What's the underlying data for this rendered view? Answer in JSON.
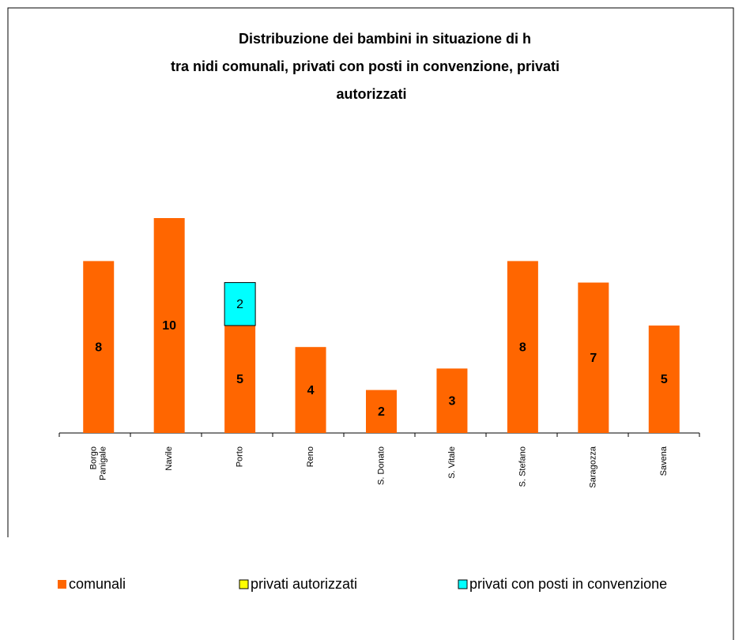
{
  "chart_data": {
    "type": "stacked_bar",
    "title": [
      "Distribuzione dei bambini in situazione di h",
      "tra nidi comunali, privati con posti in convenzione, privati",
      "autorizzati"
    ],
    "categories": [
      "Borgo Panigale",
      "Navile",
      "Porto",
      "Reno",
      "S. Donato",
      "S. Vitale",
      "S. Stefano",
      "Saragozza",
      "Savena"
    ],
    "series": [
      {
        "name": "comunali",
        "color": "#ff6600",
        "values": [
          8,
          10,
          5,
          4,
          2,
          3,
          8,
          7,
          5
        ]
      },
      {
        "name": "privati autorizzati",
        "color": "#ffff00",
        "values": [
          0,
          0,
          0,
          0,
          0,
          0,
          0,
          0,
          0
        ]
      },
      {
        "name": "privati con posti in convenzione",
        "color": "#00ffff",
        "values": [
          0,
          0,
          2,
          0,
          0,
          0,
          0,
          0,
          0
        ]
      }
    ],
    "legend": "bottom"
  }
}
